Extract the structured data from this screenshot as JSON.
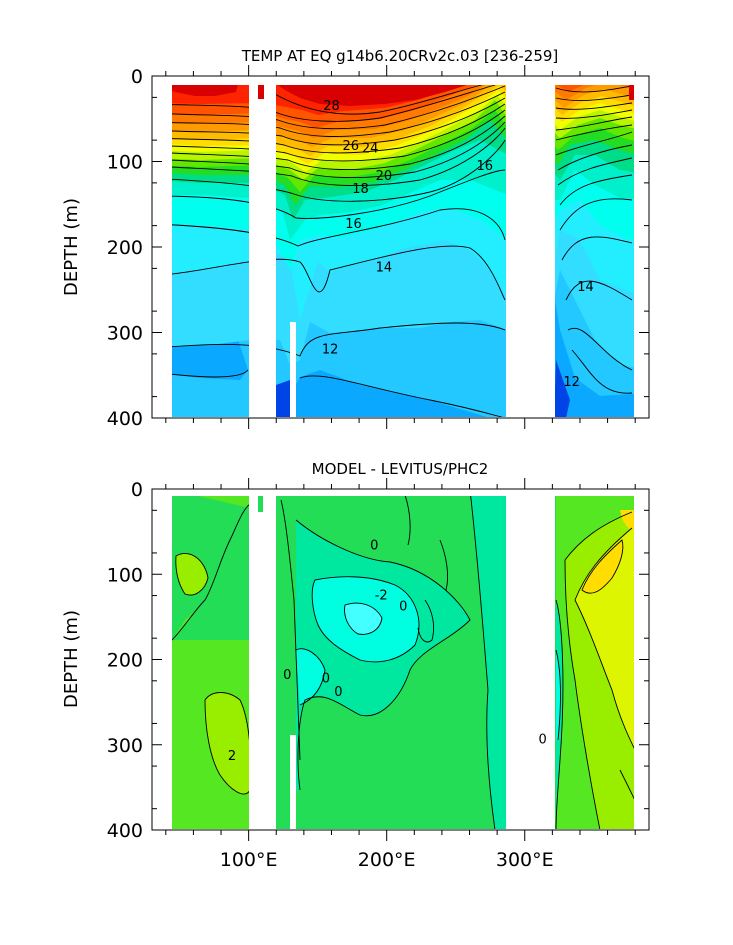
{
  "chart_data": [
    {
      "type": "contour",
      "title": "TEMP AT EQ g14b6.20CRv2c.03 [236-259]",
      "ylabel": "DEPTH (m)",
      "xlabel": "",
      "xlim": [
        30,
        390
      ],
      "ylim": [
        400,
        0
      ],
      "y_ticks": [
        0,
        100,
        200,
        300,
        400
      ],
      "y_tick_labels": [
        "0",
        "100",
        "200",
        "300",
        "400"
      ],
      "x_ticks": [
        100,
        200,
        300
      ],
      "x_tick_labels": [
        "100°E",
        "200°E",
        "300°E"
      ],
      "data_range_x": [
        43,
        368
      ],
      "missing_x_ranges": [
        [
          97,
          118
        ],
        [
          278,
          314
        ]
      ],
      "contour_interval": 1,
      "contour_labels": [
        {
          "text": "28",
          "x": 160,
          "y": 35
        },
        {
          "text": "26",
          "x": 174,
          "y": 82
        },
        {
          "text": "24",
          "x": 188,
          "y": 85
        },
        {
          "text": "20",
          "x": 198,
          "y": 117
        },
        {
          "text": "18",
          "x": 181,
          "y": 132
        },
        {
          "text": "16",
          "x": 176,
          "y": 173
        },
        {
          "text": "16",
          "x": 271,
          "y": 105
        },
        {
          "text": "14",
          "x": 198,
          "y": 224
        },
        {
          "text": "14",
          "x": 344,
          "y": 247
        },
        {
          "text": "12",
          "x": 159,
          "y": 320
        },
        {
          "text": "12",
          "x": 334,
          "y": 358
        }
      ],
      "bands": [
        {
          "min": 28,
          "max": 30,
          "color": "#d80000"
        },
        {
          "min": 27,
          "max": 28,
          "color": "#ff2400"
        },
        {
          "min": 26,
          "max": 27,
          "color": "#ff5500"
        },
        {
          "min": 25,
          "max": 26,
          "color": "#ff7a00"
        },
        {
          "min": 24,
          "max": 25,
          "color": "#ff9a00"
        },
        {
          "min": 23,
          "max": 24,
          "color": "#ffbb00"
        },
        {
          "min": 22,
          "max": 23,
          "color": "#ffdd00"
        },
        {
          "min": 21,
          "max": 22,
          "color": "#f2ff00"
        },
        {
          "min": 20,
          "max": 21,
          "color": "#b8f500"
        },
        {
          "min": 19,
          "max": 20,
          "color": "#62e800"
        },
        {
          "min": 18,
          "max": 19,
          "color": "#22dd22"
        },
        {
          "min": 17,
          "max": 18,
          "color": "#00dd88"
        },
        {
          "min": 16,
          "max": 17,
          "color": "#00f0cc"
        },
        {
          "min": 15,
          "max": 16,
          "color": "#00ffee"
        },
        {
          "min": 14,
          "max": 15,
          "color": "#22eeff"
        },
        {
          "min": 13,
          "max": 14,
          "color": "#33ddff"
        },
        {
          "min": 12,
          "max": 13,
          "color": "#22c8ff"
        },
        {
          "min": 11,
          "max": 12,
          "color": "#0aa8ff"
        },
        {
          "min": 10,
          "max": 11,
          "color": "#0a6cff"
        },
        {
          "min": 8,
          "max": 10,
          "color": "#0044e8"
        }
      ]
    },
    {
      "type": "contour",
      "title": "MODEL - LEVITUS/PHC2",
      "ylabel": "DEPTH (m)",
      "xlabel": "",
      "xlim": [
        30,
        390
      ],
      "ylim": [
        400,
        0
      ],
      "y_ticks": [
        0,
        100,
        200,
        300,
        400
      ],
      "y_tick_labels": [
        "0",
        "100",
        "200",
        "300",
        "400"
      ],
      "x_ticks": [
        100,
        200,
        300
      ],
      "x_tick_labels": [
        "100°E",
        "200°E",
        "300°E"
      ],
      "data_range_x": [
        43,
        368
      ],
      "missing_x_ranges": [
        [
          97,
          118
        ],
        [
          278,
          314
        ]
      ],
      "contour_interval": 1,
      "contour_labels": [
        {
          "text": "0",
          "x": 191,
          "y": 66
        },
        {
          "text": "-2",
          "x": 196,
          "y": 125
        },
        {
          "text": "0",
          "x": 212,
          "y": 138
        },
        {
          "text": "0",
          "x": 128,
          "y": 218
        },
        {
          "text": "0",
          "x": 156,
          "y": 222
        },
        {
          "text": "0",
          "x": 165,
          "y": 238
        },
        {
          "text": "2",
          "x": 88,
          "y": 313
        },
        {
          "text": "0",
          "x": 313,
          "y": 294
        }
      ],
      "bands": [
        {
          "min": 3,
          "max": 6,
          "color": "#ffdd00"
        },
        {
          "min": 2,
          "max": 3,
          "color": "#ddf500"
        },
        {
          "min": 1,
          "max": 2,
          "color": "#99ee00"
        },
        {
          "min": 0,
          "max": 1,
          "color": "#55e822"
        },
        {
          "min": -1,
          "max": 0,
          "color": "#22dd55"
        },
        {
          "min": -2,
          "max": -1,
          "color": "#00e8a0"
        },
        {
          "min": -3,
          "max": -2,
          "color": "#00ffe0"
        },
        {
          "min": -6,
          "max": -3,
          "color": "#44ffff"
        }
      ]
    }
  ]
}
